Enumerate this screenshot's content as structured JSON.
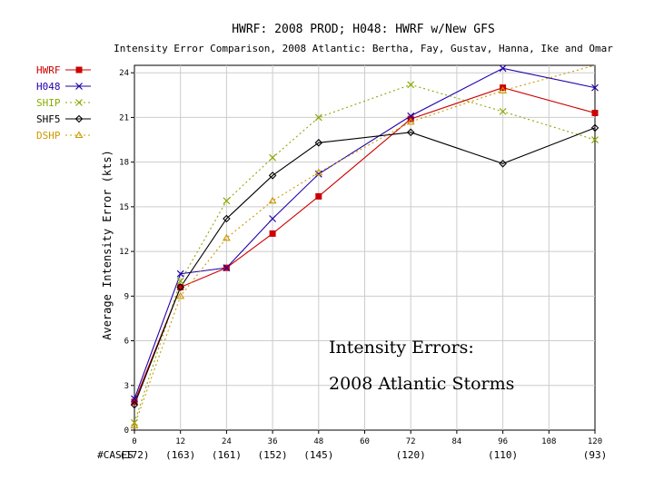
{
  "chart_data": {
    "type": "line",
    "title": "HWRF: 2008 PROD; H048: HWRF w/New GFS",
    "subtitle": "Intensity Error Comparison, 2008 Atlantic: Bertha, Fay, Gustav, Hanna, Ike and Omar",
    "xlabel": "",
    "ylabel": "Average Intensity Error (kts)",
    "xlim": [
      0,
      120
    ],
    "ylim": [
      0,
      24.5
    ],
    "x_ticks": [
      0,
      12,
      24,
      36,
      48,
      60,
      72,
      84,
      96,
      108,
      120
    ],
    "x_tick_labels": [
      "0",
      "12",
      "24",
      "36",
      "48",
      "60",
      "72",
      "84",
      "96",
      "108",
      "120"
    ],
    "y_ticks": [
      0,
      3,
      6,
      9,
      12,
      15,
      18,
      21,
      24
    ],
    "y_tick_labels": [
      "0",
      "3",
      "6",
      "9",
      "12",
      "15",
      "18",
      "21",
      "24"
    ],
    "cases_label": "#CASES",
    "cases_x": [
      0,
      12,
      24,
      36,
      48,
      72,
      96,
      120
    ],
    "cases": [
      "(172)",
      "(163)",
      "(161)",
      "(152)",
      "(145)",
      "(120)",
      "(110)",
      "(93)"
    ],
    "grid": true,
    "legend_position": "left",
    "series": [
      {
        "name": "HWRF",
        "color": "#cc0000",
        "dash": "",
        "marker": "square",
        "x": [
          0,
          12,
          24,
          36,
          48,
          72,
          96,
          120
        ],
        "values": [
          1.9,
          9.6,
          10.9,
          13.2,
          15.7,
          20.9,
          23.0,
          21.3
        ]
      },
      {
        "name": "H048",
        "color": "#2200aa",
        "dash": "",
        "marker": "x",
        "x": [
          0,
          12,
          24,
          36,
          48,
          72,
          96,
          120
        ],
        "values": [
          2.1,
          10.5,
          10.9,
          14.2,
          17.2,
          21.1,
          24.3,
          23.0
        ]
      },
      {
        "name": "SHIP",
        "color": "#88aa00",
        "dash": "2,3",
        "marker": "x",
        "x": [
          0,
          12,
          24,
          36,
          48,
          72,
          96,
          120
        ],
        "values": [
          0.5,
          10.0,
          15.4,
          18.3,
          21.0,
          23.2,
          21.4,
          19.5
        ]
      },
      {
        "name": "SHF5",
        "color": "#000000",
        "dash": "",
        "marker": "diamond",
        "x": [
          0,
          12,
          24,
          36,
          48,
          72,
          96,
          120
        ],
        "values": [
          1.7,
          9.6,
          14.2,
          17.1,
          19.3,
          20.0,
          17.9,
          20.3
        ]
      },
      {
        "name": "DSHP",
        "color": "#cc9900",
        "dash": "2,3",
        "marker": "triangle",
        "x": [
          0,
          12,
          24,
          36,
          48,
          72,
          96,
          120
        ],
        "values": [
          0.3,
          9.0,
          12.9,
          15.4,
          17.3,
          20.7,
          22.8,
          24.6
        ]
      }
    ]
  },
  "overlay": {
    "line1": "Intensity Errors:",
    "line2": "2008 Atlantic Storms"
  }
}
